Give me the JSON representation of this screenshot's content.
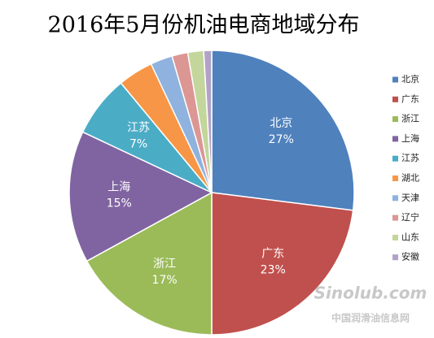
{
  "chart_data": {
    "type": "pie",
    "title": "2016年5月份机油电商地域分布",
    "categories": [
      "北京",
      "广东",
      "浙江",
      "上海",
      "江苏",
      "湖北",
      "天津",
      "辽宁",
      "山东",
      "安徽"
    ],
    "values": [
      27,
      23,
      17,
      15,
      7,
      4,
      2.5,
      1.8,
      1.8,
      0.9
    ],
    "value_labels": [
      "27%",
      "23%",
      "17%",
      "15%",
      "7%",
      null,
      null,
      null,
      null,
      null
    ],
    "colors": [
      "#4f81bd",
      "#c0504d",
      "#9bbb59",
      "#8064a2",
      "#4bacc6",
      "#f79646",
      "#8fb2de",
      "#dc9694",
      "#c3d69b",
      "#b3a2c7"
    ],
    "legend": "right"
  },
  "watermark": {
    "logo": "Sinolub.com",
    "text": "中国润滑油信息网"
  }
}
